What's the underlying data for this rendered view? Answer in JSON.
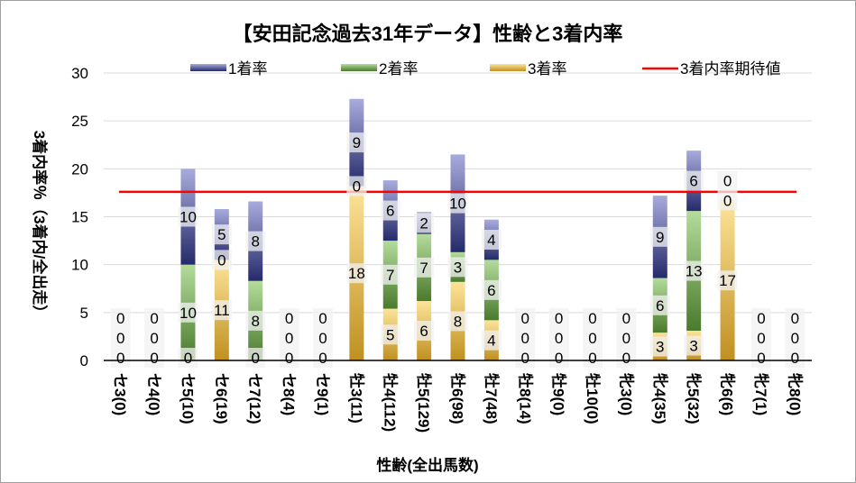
{
  "chart_data": {
    "type": "bar",
    "stacked": true,
    "title": "【安田記念過去31年データ】性齢と3着内率",
    "xlabel": "性齢(全出馬数)",
    "ylabel": "3着内率％（3着内/全出走）",
    "ylim": [
      0,
      30
    ],
    "yticks": [
      "0",
      "5",
      "10",
      "15",
      "20",
      "25",
      "30"
    ],
    "grid": true,
    "legend_position": "top",
    "categories": [
      "セ3(0)",
      "セ4(0)",
      "セ5(10)",
      "セ6(19)",
      "セ7(12)",
      "セ8(4)",
      "セ9(1)",
      "牡3(11)",
      "牡4(112)",
      "牡5(129)",
      "牡6(98)",
      "牡7(48)",
      "牡8(14)",
      "牡9(0)",
      "牡10(0)",
      "牝3(0)",
      "牝4(35)",
      "牝5(32)",
      "牝6(6)",
      "牝7(1)",
      "牝8(0)"
    ],
    "series": [
      {
        "name": "3着率",
        "color_top": "#fde49a",
        "color_bottom": "#bf9020",
        "values": [
          0,
          0,
          0,
          10.5,
          0,
          0,
          0,
          18.2,
          5.4,
          6.2,
          8.2,
          4.2,
          0,
          0,
          0,
          0,
          2.9,
          3.1,
          16.7,
          0,
          0
        ],
        "labels": [
          "0",
          "0",
          "0",
          "11",
          "0",
          "0",
          "0",
          "18",
          "5",
          "6",
          "8",
          "4",
          "0",
          "0",
          "0",
          "0",
          "3",
          "3",
          "17",
          "0",
          "0"
        ]
      },
      {
        "name": "2着率",
        "color_top": "#b4dc9c",
        "color_bottom": "#4a7a2c",
        "values": [
          0,
          0,
          10,
          0,
          8.3,
          0,
          0,
          0,
          7.1,
          7.0,
          3.1,
          6.3,
          0,
          0,
          0,
          0,
          5.7,
          12.5,
          0,
          0,
          0
        ],
        "labels": [
          "0",
          "0",
          "10",
          "0",
          "8",
          "0",
          "0",
          "0",
          "7",
          "7",
          "3",
          "6",
          "0",
          "0",
          "0",
          "0",
          "6",
          "13",
          "0",
          "0",
          "0"
        ]
      },
      {
        "name": "1着率",
        "color_top": "#a8acdc",
        "color_bottom": "#252a6a",
        "values": [
          0,
          0,
          10,
          5.3,
          8.3,
          0,
          0,
          9.1,
          6.3,
          2.3,
          10.2,
          4.2,
          0,
          0,
          0,
          0,
          8.6,
          6.3,
          0,
          0,
          0
        ],
        "labels": [
          "0",
          "0",
          "10",
          "5",
          "8",
          "0",
          "0",
          "9",
          "6",
          "2",
          "10",
          "4",
          "0",
          "0",
          "0",
          "0",
          "9",
          "6",
          "0",
          "0",
          "0"
        ]
      }
    ],
    "reference_line": {
      "name": "3着内率期待値",
      "value": 17.6,
      "color": "#ff0000"
    }
  }
}
